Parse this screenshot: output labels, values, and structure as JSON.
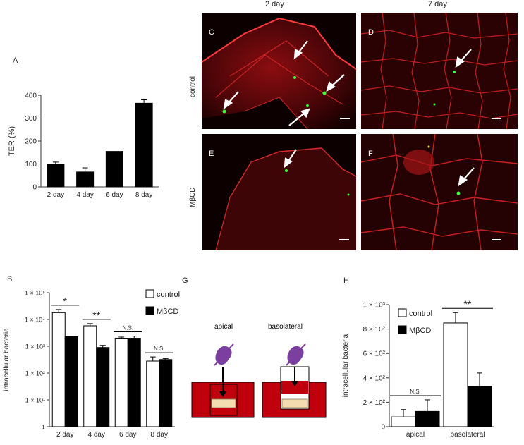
{
  "panels": {
    "A": "A",
    "B": "B",
    "C": "C",
    "D": "D",
    "E": "E",
    "F": "F",
    "G": "G",
    "H": "H"
  },
  "micrographs": {
    "col_2day": "2 day",
    "col_7day": "7 day",
    "row_control": "control",
    "row_mbcd": "MβCD"
  },
  "diagram": {
    "apical": "apical",
    "basolateral": "basolateral",
    "colors": {
      "medium": "#c1000e",
      "insert": "#f2dcb0",
      "bacterium": "#7b3fa0"
    }
  },
  "chart_data": [
    {
      "id": "A",
      "type": "bar",
      "ylabel": "TER (%)",
      "categories": [
        "2 day",
        "4 day",
        "6 day",
        "8 day"
      ],
      "values": [
        100,
        65,
        155,
        365
      ],
      "errors": [
        8,
        18,
        0,
        15
      ],
      "ylim": [
        0,
        400
      ],
      "yticks": [
        "0",
        "100",
        "200",
        "300",
        "400"
      ],
      "color": "#000000"
    },
    {
      "id": "B",
      "type": "bar",
      "scale": "log",
      "ylabel": "intracellular bacteria",
      "categories": [
        "2 day",
        "4 day",
        "6 day",
        "8 day"
      ],
      "ylim": [
        1,
        100000
      ],
      "yticks": [
        "1",
        "1 × 10¹",
        "1 × 10²",
        "1 × 10³",
        "1 × 10⁴",
        "1 × 10⁵"
      ],
      "series": [
        {
          "name": "control",
          "values": [
            18000,
            5800,
            2000,
            280
          ],
          "errors": [
            5500,
            1200,
            200,
            120
          ],
          "fill": "#ffffff"
        },
        {
          "name": "MβCD",
          "values": [
            2300,
            900,
            2000,
            320
          ],
          "errors": [
            0,
            180,
            400,
            30
          ],
          "fill": "#000000"
        }
      ],
      "significance": [
        "*",
        "**",
        "N.S.",
        "N.S."
      ],
      "legend": "top-right"
    },
    {
      "id": "H",
      "type": "bar",
      "ylabel": "intracellular bacteria",
      "categories": [
        "apical",
        "basolateral"
      ],
      "ylim": [
        0,
        1000
      ],
      "yticks": [
        "0",
        "2 × 10²",
        "4 × 10²",
        "6 × 10²",
        "8 × 10²",
        "1 × 10³"
      ],
      "series": [
        {
          "name": "control",
          "values": [
            80,
            850
          ],
          "errors": [
            60,
            85
          ],
          "fill": "#ffffff"
        },
        {
          "name": "MβCD",
          "values": [
            125,
            330
          ],
          "errors": [
            95,
            110
          ],
          "fill": "#000000"
        }
      ],
      "significance": [
        "N.S.",
        "**"
      ],
      "legend": "top-left"
    }
  ]
}
